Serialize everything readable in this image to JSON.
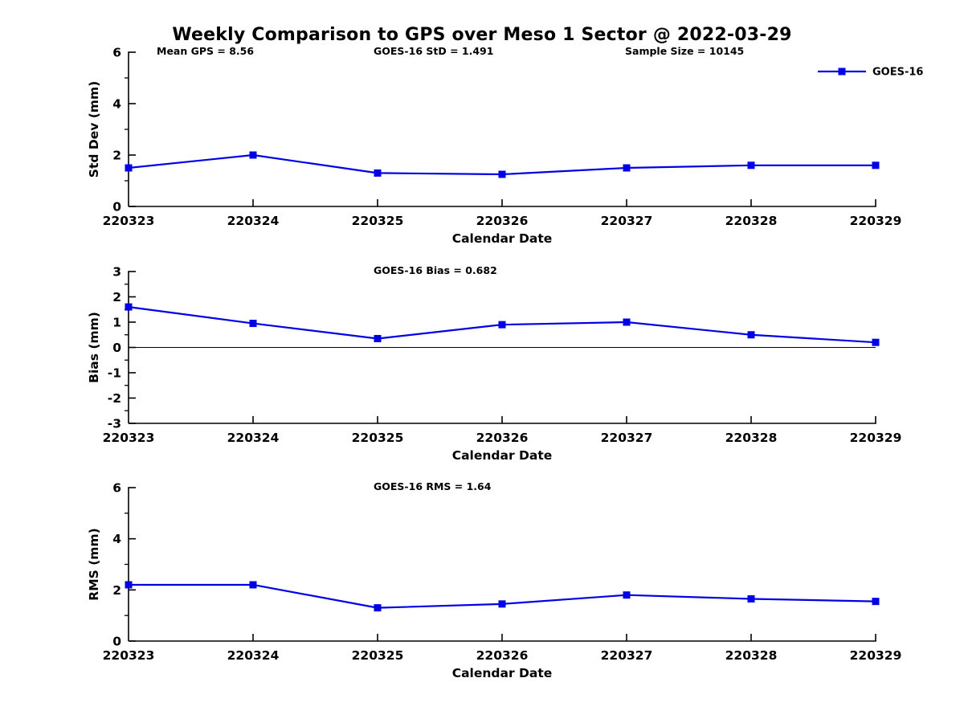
{
  "title": "Weekly Comparison to GPS over Meso 1 Sector @ 2022-03-29",
  "colors": {
    "series_blue": "#0000e6",
    "axis_black": "#000000",
    "text_black": "#000000"
  },
  "legend": {
    "label": "GOES-16",
    "marker": "filled-square",
    "color": "#0000e6",
    "position": "top-right"
  },
  "chart_data": [
    {
      "type": "line",
      "ylabel": "Std Dev (mm)",
      "xlabel": "Calendar Date",
      "categories": [
        "220323",
        "220324",
        "220325",
        "220326",
        "220327",
        "220328",
        "220329"
      ],
      "series": [
        {
          "name": "GOES-16",
          "values": [
            1.5,
            2.0,
            1.3,
            1.25,
            1.5,
            1.6,
            1.6
          ]
        }
      ],
      "ylim": [
        0,
        6
      ],
      "yticks": [
        0,
        2,
        4,
        6
      ],
      "annotations": [
        "Mean GPS = 8.56",
        "GOES-16 StD = 1.491",
        "Sample Size = 10145"
      ],
      "zero_line": false,
      "grid": false,
      "show_legend": true
    },
    {
      "type": "line",
      "ylabel": "Bias (mm)",
      "xlabel": "Calendar Date",
      "categories": [
        "220323",
        "220324",
        "220325",
        "220326",
        "220327",
        "220328",
        "220329"
      ],
      "series": [
        {
          "name": "GOES-16",
          "values": [
            1.6,
            0.95,
            0.35,
            0.9,
            1.0,
            0.5,
            0.2
          ]
        }
      ],
      "ylim": [
        -3,
        3
      ],
      "yticks": [
        3,
        2,
        1,
        0,
        -1,
        -2,
        -3
      ],
      "annotations": [
        "GOES-16 Bias  = 0.682"
      ],
      "zero_line": true,
      "grid": false,
      "show_legend": false
    },
    {
      "type": "line",
      "ylabel": "RMS (mm)",
      "xlabel": "Calendar Date",
      "categories": [
        "220323",
        "220324",
        "220325",
        "220326",
        "220327",
        "220328",
        "220329"
      ],
      "series": [
        {
          "name": "GOES-16",
          "values": [
            2.2,
            2.2,
            1.3,
            1.45,
            1.8,
            1.65,
            1.55
          ]
        }
      ],
      "ylim": [
        0,
        6
      ],
      "yticks": [
        0,
        2,
        4,
        6
      ],
      "annotations": [
        "GOES-16 RMS = 1.64"
      ],
      "zero_line": false,
      "grid": false,
      "show_legend": false
    }
  ]
}
